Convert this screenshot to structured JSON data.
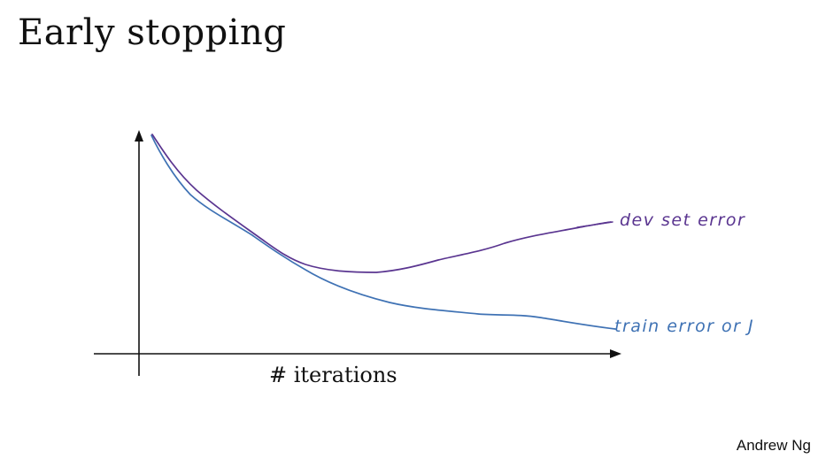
{
  "title": "Early stopping",
  "author": "Andrew Ng",
  "x_axis_label": "# iterations",
  "curves": {
    "dev": {
      "label": "dev set error",
      "color": "#5a3590"
    },
    "train": {
      "label": "train error or J",
      "color": "#3f72b4"
    }
  },
  "axis_color": "#111111"
}
